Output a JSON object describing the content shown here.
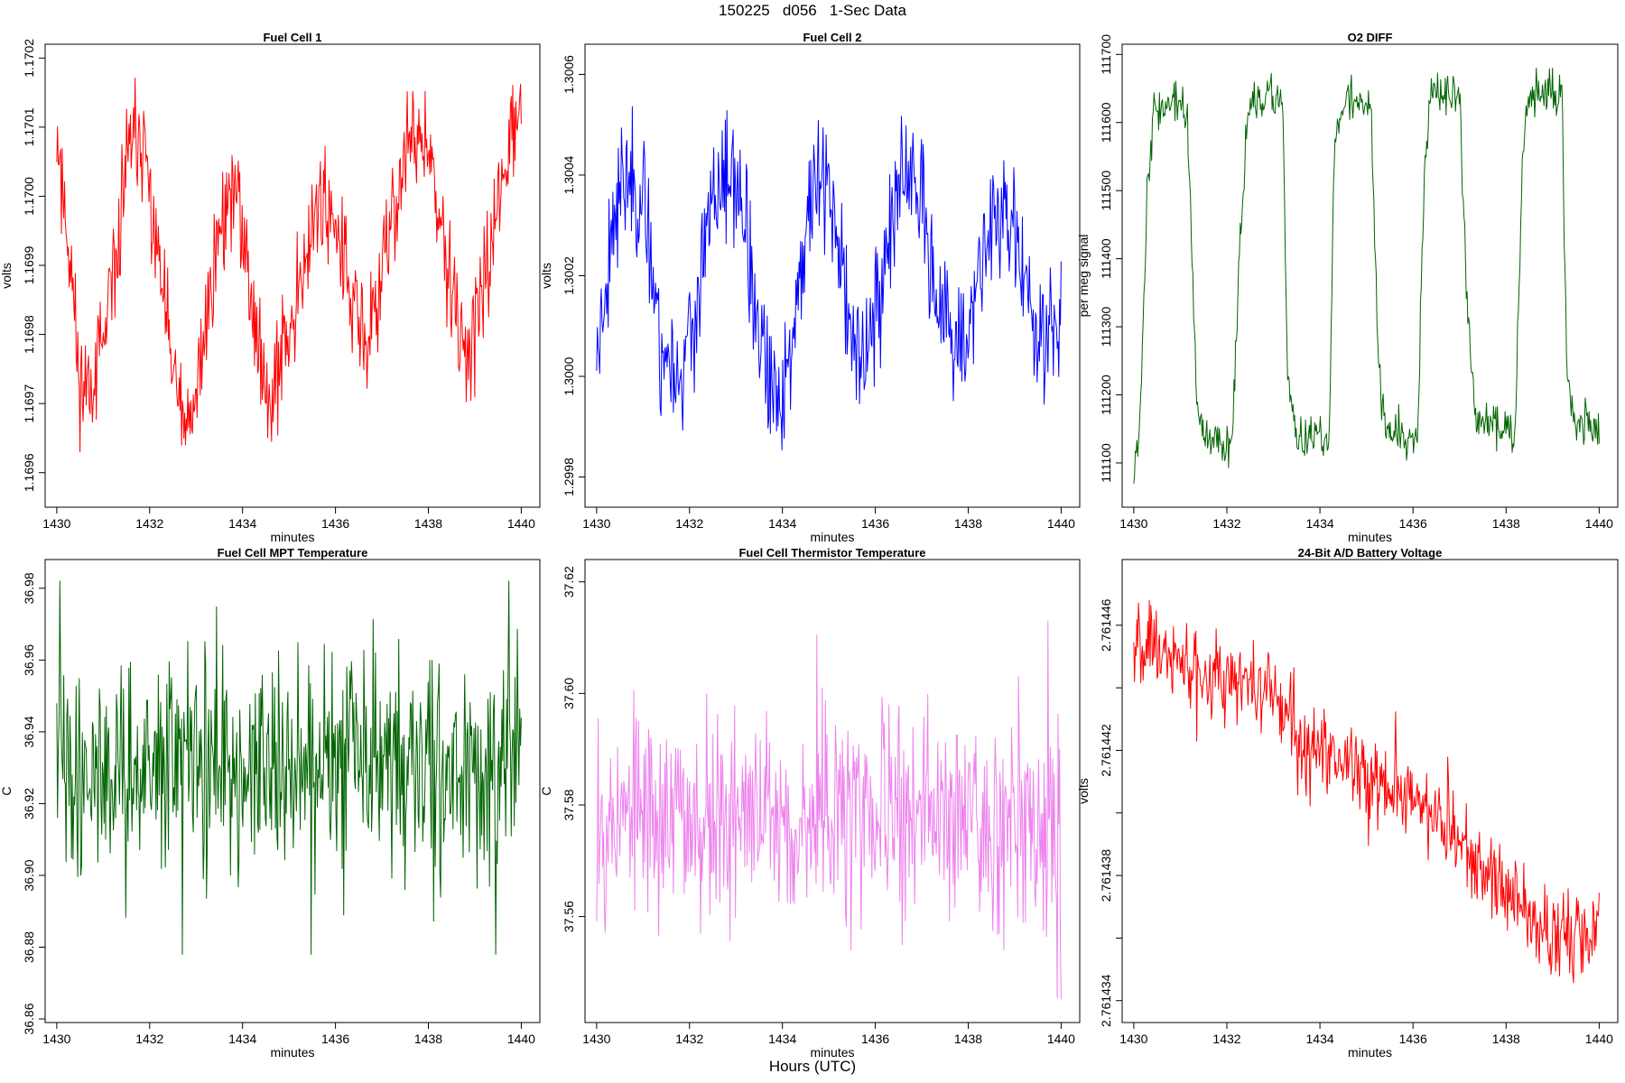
{
  "page": {
    "title": "150225   d056   1-Sec Data",
    "footer": "Hours (UTC)"
  },
  "chart_data": [
    {
      "type": "line",
      "title": "Fuel Cell 1",
      "xlabel": "minutes",
      "ylabel": "volts",
      "color": "#ff0000",
      "xlim": [
        1429.75,
        1440.4
      ],
      "ylim": [
        1.16955,
        1.17022
      ],
      "x_ticks": [
        1430,
        1432,
        1434,
        1436,
        1438,
        1440
      ],
      "y_ticks": [
        1.1696,
        1.1697,
        1.1698,
        1.1699,
        1.17,
        1.1701,
        1.1702
      ],
      "y_tick_labels": [
        "1.1696",
        "1.1697",
        "1.1698",
        "1.1699",
        "1.1700",
        "1.1701",
        "1.1702"
      ],
      "points": [
        [
          1430.0,
          1.1701
        ],
        [
          1430.3,
          1.1699
        ],
        [
          1430.5,
          1.16972
        ],
        [
          1430.8,
          1.16975
        ],
        [
          1431.0,
          1.16978
        ],
        [
          1431.2,
          1.16985
        ],
        [
          1431.5,
          1.17005
        ],
        [
          1431.8,
          1.1701
        ],
        [
          1432.0,
          1.17
        ],
        [
          1432.3,
          1.16985
        ],
        [
          1432.6,
          1.1697
        ],
        [
          1432.9,
          1.16965
        ],
        [
          1433.2,
          1.16982
        ],
        [
          1433.5,
          1.16995
        ],
        [
          1433.8,
          1.17002
        ],
        [
          1434.1,
          1.1699
        ],
        [
          1434.4,
          1.16975
        ],
        [
          1434.7,
          1.16973
        ],
        [
          1435.0,
          1.1698
        ],
        [
          1435.3,
          1.1699
        ],
        [
          1435.7,
          1.17
        ],
        [
          1436.0,
          1.16998
        ],
        [
          1436.3,
          1.16985
        ],
        [
          1436.7,
          1.16978
        ],
        [
          1437.0,
          1.16988
        ],
        [
          1437.3,
          1.17
        ],
        [
          1437.7,
          1.1701
        ],
        [
          1438.0,
          1.17005
        ],
        [
          1438.4,
          1.1699
        ],
        [
          1438.7,
          1.16978
        ],
        [
          1439.0,
          1.1698
        ],
        [
          1439.3,
          1.1699
        ],
        [
          1439.6,
          1.17005
        ],
        [
          1440.0,
          1.17012
        ]
      ],
      "noise": 4e-05,
      "noise_max": 9e-05,
      "seed": 11
    },
    {
      "type": "line",
      "title": "Fuel Cell 2",
      "xlabel": "minutes",
      "ylabel": "volts",
      "color": "#0000ff",
      "xlim": [
        1429.75,
        1440.4
      ],
      "ylim": [
        1.29974,
        1.30066
      ],
      "x_ticks": [
        1430,
        1432,
        1434,
        1436,
        1438,
        1440
      ],
      "y_ticks": [
        1.2998,
        1.3,
        1.3002,
        1.3004,
        1.3006
      ],
      "y_tick_labels": [
        "1.2998",
        "1.3000",
        "1.3002",
        "1.3004",
        "1.3006"
      ],
      "points": [
        [
          1430.0,
          1.30005
        ],
        [
          1430.4,
          1.30035
        ],
        [
          1430.8,
          1.3004
        ],
        [
          1431.1,
          1.3003
        ],
        [
          1431.4,
          1.30005
        ],
        [
          1431.8,
          1.3
        ],
        [
          1432.1,
          1.3001
        ],
        [
          1432.5,
          1.30035
        ],
        [
          1432.9,
          1.3004
        ],
        [
          1433.2,
          1.3003
        ],
        [
          1433.5,
          1.30005
        ],
        [
          1433.9,
          1.29995
        ],
        [
          1434.2,
          1.30005
        ],
        [
          1434.5,
          1.3003
        ],
        [
          1434.8,
          1.3004
        ],
        [
          1435.1,
          1.30035
        ],
        [
          1435.4,
          1.3001
        ],
        [
          1435.8,
          1.30005
        ],
        [
          1436.1,
          1.30015
        ],
        [
          1436.4,
          1.30035
        ],
        [
          1436.7,
          1.3004
        ],
        [
          1437.0,
          1.30035
        ],
        [
          1437.4,
          1.3001
        ],
        [
          1437.8,
          1.30005
        ],
        [
          1438.1,
          1.3001
        ],
        [
          1438.4,
          1.3003
        ],
        [
          1438.8,
          1.30035
        ],
        [
          1439.1,
          1.30025
        ],
        [
          1439.4,
          1.3001
        ],
        [
          1439.7,
          1.30008
        ],
        [
          1440.0,
          1.3001
        ]
      ],
      "noise": 6e-05,
      "noise_max": 0.00014,
      "seed": 23
    },
    {
      "type": "line",
      "title": "O2 DIFF",
      "xlabel": "minutes",
      "ylabel": "per meg signal",
      "color": "#006400",
      "xlim": [
        1429.75,
        1440.4
      ],
      "ylim": [
        111035,
        111715
      ],
      "x_ticks": [
        1430,
        1432,
        1434,
        1436,
        1438,
        1440
      ],
      "y_ticks": [
        111100,
        111200,
        111300,
        111400,
        111500,
        111600,
        111700
      ],
      "y_tick_labels": [
        "111100",
        "111200",
        "111300",
        "111400",
        "111500",
        "111600",
        "111700"
      ],
      "points": [
        [
          1430.0,
          111100
        ],
        [
          1430.12,
          111150
        ],
        [
          1430.3,
          111520
        ],
        [
          1430.45,
          111620
        ],
        [
          1431.0,
          111630
        ],
        [
          1431.15,
          111600
        ],
        [
          1431.35,
          111200
        ],
        [
          1431.5,
          111130
        ],
        [
          1432.1,
          111130
        ],
        [
          1432.3,
          111450
        ],
        [
          1432.45,
          111620
        ],
        [
          1433.2,
          111640
        ],
        [
          1433.3,
          111230
        ],
        [
          1433.45,
          111140
        ],
        [
          1434.2,
          111130
        ],
        [
          1434.3,
          111550
        ],
        [
          1434.45,
          111630
        ],
        [
          1435.1,
          111630
        ],
        [
          1435.25,
          111250
        ],
        [
          1435.4,
          111150
        ],
        [
          1436.1,
          111140
        ],
        [
          1436.25,
          111550
        ],
        [
          1436.4,
          111640
        ],
        [
          1437.0,
          111640
        ],
        [
          1437.15,
          111350
        ],
        [
          1437.35,
          111160
        ],
        [
          1438.2,
          111150
        ],
        [
          1438.35,
          111560
        ],
        [
          1438.5,
          111640
        ],
        [
          1439.2,
          111640
        ],
        [
          1439.3,
          111250
        ],
        [
          1439.45,
          111160
        ],
        [
          1440.0,
          111150
        ]
      ],
      "noise": 15,
      "noise_max": 40,
      "seed": 37
    },
    {
      "type": "line",
      "title": "Fuel Cell MPT Temperature",
      "xlabel": "minutes",
      "ylabel": "C",
      "color": "#006400",
      "xlim": [
        1429.75,
        1440.4
      ],
      "ylim": [
        36.859,
        36.988
      ],
      "x_ticks": [
        1430,
        1432,
        1434,
        1436,
        1438,
        1440
      ],
      "y_ticks": [
        36.86,
        36.88,
        36.9,
        36.92,
        36.94,
        36.96,
        36.98
      ],
      "y_tick_labels": [
        "36.86",
        "36.88",
        "36.90",
        "36.92",
        "36.94",
        "36.96",
        "36.98"
      ],
      "points": [
        [
          1430.0,
          36.93
        ],
        [
          1440.0,
          36.93
        ]
      ],
      "noise": 0.014,
      "noise_max": 0.052,
      "seed": 41
    },
    {
      "type": "line",
      "title": "Fuel Cell Thermistor Temperature",
      "xlabel": "minutes",
      "ylabel": "C",
      "color": "#ee82ee",
      "xlim": [
        1429.75,
        1440.4
      ],
      "ylim": [
        37.541,
        37.624
      ],
      "x_ticks": [
        1430,
        1432,
        1434,
        1436,
        1438,
        1440
      ],
      "y_ticks": [
        37.56,
        37.58,
        37.6,
        37.62
      ],
      "y_tick_labels": [
        "37.56",
        "37.58",
        "37.60",
        "37.62"
      ],
      "points": [
        [
          1430.0,
          37.578
        ],
        [
          1440.0,
          37.578
        ]
      ],
      "noise": 0.009,
      "noise_max": 0.035,
      "seed": 53
    },
    {
      "type": "line",
      "title": "24-Bit A/D Battery Voltage",
      "xlabel": "minutes",
      "ylabel": "volts",
      "color": "#ff0000",
      "xlim": [
        1429.75,
        1440.4
      ],
      "ylim": [
        2.7614333,
        2.7614481
      ],
      "x_ticks": [
        1430,
        1432,
        1434,
        1436,
        1438,
        1440
      ],
      "y_ticks": [
        2.761434,
        2.761436,
        2.761438,
        2.76144,
        2.761442,
        2.761444,
        2.761446
      ],
      "y_tick_labels": [
        "2.761434",
        "",
        "2.761438",
        "",
        "2.761442",
        "",
        "2.761446"
      ],
      "points": [
        [
          1430.0,
          2.7614457
        ],
        [
          1431.0,
          2.7614448
        ],
        [
          1432.0,
          2.7614445
        ],
        [
          1432.8,
          2.761444
        ],
        [
          1433.5,
          2.7614425
        ],
        [
          1434.3,
          2.761442
        ],
        [
          1435.0,
          2.7614414
        ],
        [
          1436.0,
          2.7614405
        ],
        [
          1437.0,
          2.761439
        ],
        [
          1438.0,
          2.7614375
        ],
        [
          1439.0,
          2.761436
        ],
        [
          1440.0,
          2.7614362
        ]
      ],
      "noise": 6.5e-07,
      "noise_max": 2.4e-06,
      "seed": 67
    }
  ]
}
